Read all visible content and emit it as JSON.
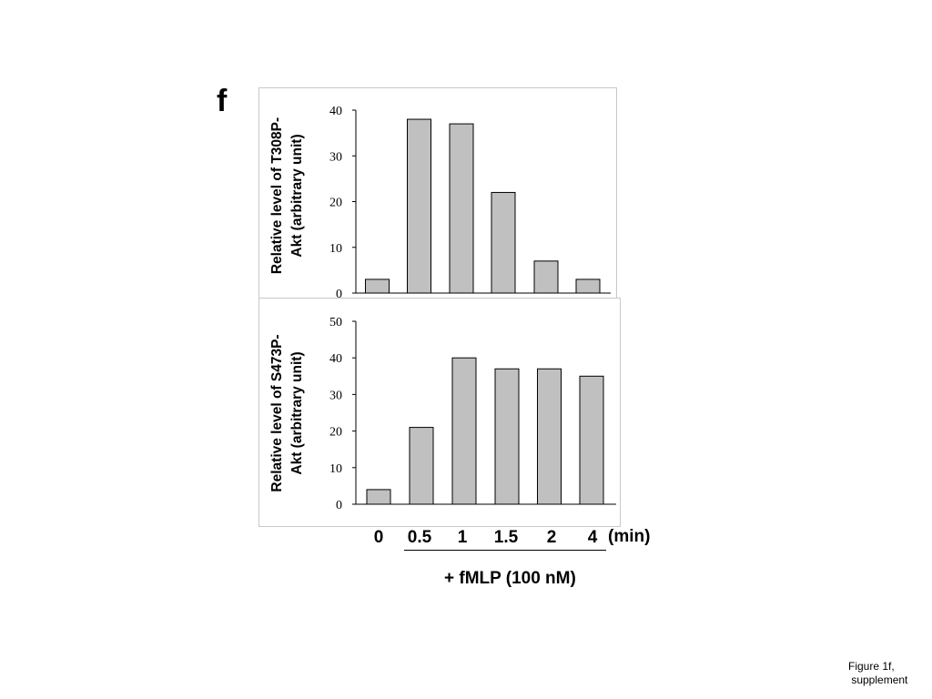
{
  "panel_label": "f",
  "chart_data": [
    {
      "type": "bar",
      "ylabel_lines": [
        "Relative level of T308P-",
        "Akt (arbitrary unit)"
      ],
      "categories": [
        "0",
        "0.5",
        "1",
        "1.5",
        "2",
        "4"
      ],
      "values": [
        3,
        38,
        37,
        22,
        7,
        3
      ],
      "ylim": [
        0,
        40
      ],
      "yticks": [
        0,
        10,
        20,
        30,
        40
      ],
      "bar_color": "#c0c0c0",
      "grid": false
    },
    {
      "type": "bar",
      "ylabel_lines": [
        "Relative level of S473P-",
        "Akt (arbitrary unit)"
      ],
      "categories": [
        "0",
        "0.5",
        "1",
        "1.5",
        "2",
        "4"
      ],
      "values": [
        4,
        21,
        40,
        37,
        37,
        35
      ],
      "ylim": [
        0,
        50
      ],
      "yticks": [
        0,
        10,
        20,
        30,
        40,
        50
      ],
      "bar_color": "#c0c0c0",
      "grid": false
    }
  ],
  "x_axis": {
    "categories": [
      "0",
      "0.5",
      "1",
      "1.5",
      "2",
      "4"
    ],
    "unit": "(min)"
  },
  "treatment_label": "+ fMLP (100 nM)",
  "footnote": "Figure 1f,\n supplement"
}
